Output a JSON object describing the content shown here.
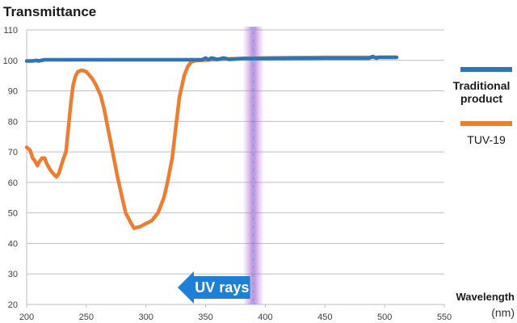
{
  "chart_data": {
    "type": "line",
    "title": "Transmittance",
    "xlabel": "Wavelength",
    "xunit": "(nm)",
    "ylabel": "",
    "xlim": [
      200,
      550
    ],
    "ylim": [
      20,
      110
    ],
    "xticks": [
      "200",
      "250",
      "300",
      "350",
      "400",
      "450",
      "500",
      "550"
    ],
    "yticks": [
      "20",
      "30",
      "40",
      "50",
      "60",
      "70",
      "80",
      "90",
      "100",
      "110"
    ],
    "grid": "horizontal",
    "legend_position": "right",
    "series": [
      {
        "name_lines": [
          "Traditional",
          "product"
        ],
        "color": "#2e75b6",
        "x": [
          200,
          205,
          208,
          210,
          215,
          250,
          300,
          347,
          350,
          352,
          355,
          360,
          365,
          370,
          380,
          400,
          450,
          487,
          490,
          493,
          495,
          510
        ],
        "y": [
          99.8,
          99.8,
          100.0,
          99.8,
          100.2,
          100.2,
          100.2,
          100.2,
          100.8,
          100.2,
          100.8,
          100.3,
          100.8,
          100.3,
          100.6,
          100.6,
          100.7,
          100.7,
          101.3,
          100.7,
          101.0,
          101.0
        ]
      },
      {
        "name": "TUV-19",
        "color": "#ed7d31",
        "x": [
          200,
          203,
          205,
          207,
          209,
          211,
          213,
          215,
          217,
          220,
          222,
          225,
          227,
          229,
          231,
          233,
          235,
          237,
          239,
          241,
          243,
          246,
          250,
          255,
          258,
          262,
          265,
          268,
          272,
          276,
          280,
          283,
          287,
          290,
          295,
          300,
          305,
          310,
          315,
          318,
          322,
          325,
          328,
          332,
          335,
          338,
          342,
          346,
          350,
          355,
          360,
          370,
          380,
          390,
          400,
          420,
          450,
          480,
          500,
          510
        ],
        "y": [
          71.5,
          70.5,
          68,
          67,
          65.5,
          67,
          68,
          68,
          66,
          64,
          63,
          61.8,
          63,
          65.5,
          68,
          70,
          78,
          86,
          92,
          95,
          96.3,
          96.8,
          96.3,
          94,
          92,
          88.5,
          84,
          78,
          70,
          62,
          55,
          50,
          47,
          45,
          45.5,
          46.5,
          47.5,
          50,
          55,
          60,
          68,
          78,
          88,
          95,
          98,
          99.5,
          100,
          100,
          100.1,
          100.2,
          100.3,
          100.5,
          100.6,
          100.7,
          100.8,
          100.9,
          101,
          101,
          101,
          101
        ]
      }
    ],
    "annotations": {
      "uv_band_x": 390,
      "uv_band_color": "#9b59b6",
      "uv_arrow_label": "UV rays",
      "uv_arrow_color": "#1e7fd6"
    }
  }
}
